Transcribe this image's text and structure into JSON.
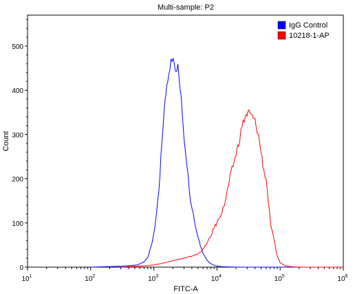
{
  "chart_data": {
    "type": "line",
    "title": "Multi-sample: P2",
    "xlabel": "FITC-A",
    "ylabel": "Count",
    "x_scale": "log",
    "xlim": [
      10,
      1000000
    ],
    "ylim": [
      0,
      570
    ],
    "x_ticks": [
      {
        "base": "10",
        "exp": "1",
        "value": 10
      },
      {
        "base": "10",
        "exp": "2",
        "value": 100
      },
      {
        "base": "10",
        "exp": "3",
        "value": 1000
      },
      {
        "base": "10",
        "exp": "4",
        "value": 10000
      },
      {
        "base": "10",
        "exp": "5",
        "value": 100000
      },
      {
        "base": "10",
        "exp": "6",
        "value": 1000000
      }
    ],
    "y_ticks": [
      "0",
      "100",
      "200",
      "300",
      "400",
      "500"
    ],
    "legend_position": "top-right",
    "grid": false,
    "series": [
      {
        "name": "IgG Control",
        "color": "#0000ff",
        "x": [
          100,
          300,
          550,
          700,
          800,
          900,
          1000,
          1100,
          1200,
          1300,
          1400,
          1500,
          1650,
          1800,
          1950,
          2100,
          2250,
          2400,
          2550,
          2700,
          2850,
          3000,
          3200,
          3500,
          3800,
          4200,
          4600,
          5200,
          6000,
          7000,
          8000,
          9500,
          12000,
          20000,
          100000,
          1000000
        ],
        "y": [
          0,
          2,
          5,
          12,
          22,
          45,
          75,
          120,
          175,
          250,
          320,
          380,
          420,
          455,
          470,
          462,
          440,
          455,
          420,
          390,
          345,
          300,
          250,
          200,
          150,
          120,
          90,
          60,
          30,
          15,
          8,
          3,
          1,
          0,
          0,
          0
        ]
      },
      {
        "name": "10218-1-AP",
        "color": "#ff0000",
        "x": [
          300,
          700,
          1000,
          1500,
          2000,
          3000,
          4000,
          5000,
          6000,
          7000,
          8000,
          9000,
          10000,
          11000,
          12000,
          13000,
          14000,
          15000,
          16000,
          18000,
          20000,
          22000,
          25000,
          28000,
          32000,
          36000,
          40000,
          45000,
          50000,
          55000,
          60000,
          65000,
          70000,
          80000,
          90000,
          100000,
          120000,
          150000,
          200000,
          1000000
        ],
        "y": [
          0,
          3,
          5,
          10,
          15,
          20,
          25,
          30,
          40,
          55,
          70,
          90,
          100,
          115,
          125,
          140,
          160,
          180,
          200,
          230,
          255,
          280,
          320,
          340,
          350,
          340,
          330,
          300,
          260,
          220,
          200,
          150,
          100,
          60,
          25,
          10,
          3,
          1,
          0,
          0
        ]
      }
    ]
  }
}
